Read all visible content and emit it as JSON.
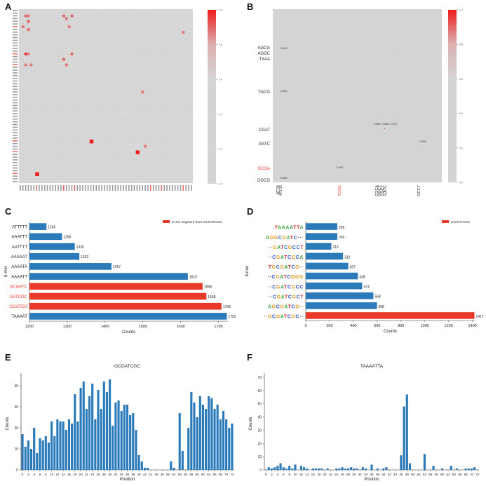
{
  "panels": {
    "A": "A",
    "B": "B",
    "C": "C",
    "D": "D",
    "E": "E",
    "F": "F"
  },
  "colors": {
    "blue": "#2b7bba",
    "red": "#e8392a",
    "heat_bg": "#d4d4d4",
    "heat_hot": "#ee1c1c"
  },
  "chart_data": [
    {
      "panel": "A",
      "type": "heatmap",
      "title": "",
      "colorbar_ticks": [
        "1.0",
        "0.8",
        "0.6",
        "0.4",
        "0.2",
        "0.0"
      ],
      "colorbar_range": [
        0,
        1
      ],
      "grid_size": 64,
      "hot_cells": [
        {
          "row": 2,
          "col": 2,
          "value": 0.6
        },
        {
          "row": 2,
          "col": 3,
          "value": 0.5
        },
        {
          "row": 4,
          "col": 3,
          "value": 0.7
        },
        {
          "row": 6,
          "col": 1,
          "value": 0.5
        },
        {
          "row": 7,
          "col": 3,
          "value": 0.6
        },
        {
          "row": 2,
          "col": 16,
          "value": 0.6
        },
        {
          "row": 3,
          "col": 17,
          "value": 0.5
        },
        {
          "row": 2,
          "col": 19,
          "value": 0.6
        },
        {
          "row": 6,
          "col": 18,
          "value": 0.5
        },
        {
          "row": 16,
          "col": 2,
          "value": 0.9
        },
        {
          "row": 16,
          "col": 3,
          "value": 0.5
        },
        {
          "row": 18,
          "col": 16,
          "value": 0.6
        },
        {
          "row": 16,
          "col": 19,
          "value": 0.6
        },
        {
          "row": 20,
          "col": 2,
          "value": 0.5
        },
        {
          "row": 20,
          "col": 4,
          "value": 0.5
        },
        {
          "row": 20,
          "col": 17,
          "value": 0.5
        },
        {
          "row": 8,
          "col": 60,
          "value": 0.5
        },
        {
          "row": 30,
          "col": 45,
          "value": 0.5
        },
        {
          "row": 48,
          "col": 26,
          "value": 1.0
        },
        {
          "row": 50,
          "col": 46,
          "value": 0.5
        },
        {
          "row": 52,
          "col": 43,
          "value": 1.0
        },
        {
          "row": 60,
          "col": 6,
          "value": 1.0
        }
      ]
    },
    {
      "panel": "B",
      "type": "heatmap",
      "title": "",
      "colorbar_ticks": [
        "1.0",
        "0.8",
        "0.6",
        "0.4",
        "0.2",
        "0.0"
      ],
      "colorbar_range": [
        0,
        1
      ],
      "y_tick_labels": [
        "AGCG",
        "AGGC",
        "TAAA",
        "TGCG",
        "CGAT",
        "GATC",
        "GCGA",
        "GGCG"
      ],
      "y_tick_red": [
        "GCGA"
      ],
      "x_tick_labels": [
        "ATTA",
        "ATCG",
        "TCGC",
        "CGCA",
        "GGCT",
        "CGCT",
        "GATC",
        "GCCT"
      ],
      "x_tick_red": [
        "TCGC"
      ],
      "annotations": [
        "0.065",
        "0.062",
        "0.060, 0.066, 0.073",
        "0.059",
        "0.060",
        "0.066"
      ]
    },
    {
      "panel": "C",
      "type": "bar",
      "orientation": "horizontal",
      "ylabel": "6-mer",
      "xlabel": "Counts",
      "xlim": [
        1200,
        1725
      ],
      "x_ticks": [
        "1200",
        "1300",
        "1400",
        "1500",
        "1600",
        "1700"
      ],
      "legend": "6-mer segment from GCGATCGC",
      "categories": [
        "ATTTTT",
        "AAATTT",
        "AATTTT",
        "AAAAAT",
        "AAAATA",
        "AAAATT",
        "GCGATC",
        "GATCGC",
        "CGATCG",
        "TAAAAT"
      ],
      "values": [
        1245,
        1286,
        1320,
        1332,
        1417,
        1619,
        1658,
        1668,
        1708,
        1722
      ],
      "highlight": [
        false,
        false,
        false,
        false,
        false,
        false,
        true,
        true,
        true,
        false
      ]
    },
    {
      "panel": "D",
      "type": "bar",
      "orientation": "horizontal",
      "ylabel": "8-mer",
      "xlabel": "Counts",
      "xlim": [
        0,
        1420
      ],
      "x_ticks": [
        "0",
        "200",
        "400",
        "600",
        "800",
        "1000",
        "1200",
        "1400"
      ],
      "legend": "GCGATCGC",
      "categories": [
        "TAAAATTA",
        "AGGCGATC",
        "GATCGCCT",
        "CGATCGCA",
        "TGCGATCG",
        "CGATCGGG",
        "CGATCGCC",
        "CGATCGCT",
        "AGCGATCG",
        "GCGATCGC"
      ],
      "display_labels": [
        "TAAAATTA",
        "AGGCGATC···",
        "··GATCGCCT",
        "··CGATCGCA",
        "TGCGATCG··",
        "··CGATCGGG",
        "··CGATCGCC",
        "··CGATCGCT",
        "AGCGATCG··",
        "··GCGATCGC··"
      ],
      "value_labels": [
        "265",
        "265",
        "215",
        "313",
        "357",
        "438",
        "474",
        "568",
        "598",
        "1417"
      ],
      "values": [
        265,
        265,
        215,
        313,
        357,
        438,
        474,
        568,
        598,
        1417
      ],
      "highlight": [
        false,
        false,
        false,
        false,
        false,
        false,
        false,
        false,
        false,
        true
      ]
    },
    {
      "panel": "E",
      "type": "bar",
      "title": "GCGATCGC",
      "xlabel": "Position",
      "ylabel": "Counts",
      "ylim": [
        0,
        44
      ],
      "y_ticks": [
        "0",
        "10",
        "20",
        "30",
        "40"
      ],
      "x_ticks": [
        "0",
        "2",
        "4",
        "6",
        "8",
        "10",
        "12",
        "14",
        "16",
        "18",
        "20",
        "22",
        "24",
        "26",
        "28",
        "30",
        "32",
        "34",
        "36",
        "38",
        "40",
        "42",
        "44",
        "46",
        "48",
        "50",
        "52",
        "54",
        "56",
        "58",
        "60",
        "62",
        "64",
        "66",
        "68",
        "70",
        "72"
      ],
      "x": [
        0,
        1,
        2,
        3,
        4,
        5,
        6,
        7,
        8,
        9,
        10,
        11,
        12,
        13,
        14,
        15,
        16,
        17,
        18,
        19,
        20,
        21,
        22,
        23,
        24,
        25,
        26,
        27,
        28,
        29,
        30,
        31,
        32,
        33,
        34,
        35,
        36,
        37,
        38,
        39,
        40,
        41,
        42,
        43,
        44,
        45,
        46,
        47,
        48,
        49,
        50,
        51,
        52,
        53,
        54,
        55,
        56,
        57,
        58,
        59,
        60,
        61,
        62,
        63,
        64,
        65,
        66,
        67,
        68,
        69,
        70,
        71,
        72
      ],
      "values": [
        17,
        11,
        14,
        10,
        20,
        8,
        15,
        14,
        16,
        13,
        23,
        16,
        24,
        23,
        23,
        19,
        24,
        22,
        36,
        23,
        39,
        42,
        29,
        35,
        41,
        24,
        38,
        29,
        42,
        37,
        43,
        21,
        32,
        33,
        28,
        31,
        31,
        26,
        27,
        19,
        7,
        4,
        1,
        1,
        0,
        0,
        0,
        0,
        0,
        0,
        0,
        4,
        1,
        0,
        27,
        9,
        0,
        20,
        37,
        32,
        25,
        35,
        31,
        29,
        35,
        34,
        29,
        31,
        24,
        28,
        24,
        20,
        22
      ]
    },
    {
      "panel": "F",
      "type": "bar",
      "title": "TAAAATTA",
      "xlabel": "Position",
      "ylabel": "Counts",
      "ylim": [
        0,
        70
      ],
      "y_ticks": [
        "0",
        "10",
        "20",
        "30",
        "40",
        "50",
        "60",
        "70"
      ],
      "x_ticks": [
        "0",
        "2",
        "4",
        "6",
        "8",
        "10",
        "12",
        "14",
        "16",
        "18",
        "20",
        "22",
        "24",
        "26",
        "28",
        "30",
        "32",
        "34",
        "36",
        "38",
        "40",
        "42",
        "44",
        "46",
        "48",
        "50",
        "52",
        "54",
        "56",
        "58",
        "60",
        "62",
        "64",
        "66",
        "68",
        "70",
        "72"
      ],
      "x": [
        0,
        1,
        2,
        3,
        4,
        5,
        6,
        7,
        8,
        9,
        10,
        11,
        12,
        13,
        14,
        15,
        16,
        17,
        18,
        19,
        20,
        21,
        22,
        23,
        24,
        25,
        26,
        27,
        28,
        29,
        30,
        31,
        32,
        33,
        34,
        35,
        36,
        37,
        38,
        39,
        40,
        41,
        42,
        43,
        44,
        45,
        46,
        47,
        48,
        49,
        50,
        51,
        52,
        53,
        54,
        55,
        56,
        57,
        58,
        59,
        60,
        61,
        62,
        63,
        64,
        65,
        66,
        67,
        68,
        69,
        70,
        71,
        72
      ],
      "values": [
        0,
        2,
        1,
        2,
        3,
        5,
        2,
        1,
        3,
        1,
        4,
        0,
        3,
        2,
        1,
        0,
        1,
        1,
        1,
        1,
        0,
        1,
        0,
        0,
        1,
        1,
        2,
        1,
        1,
        2,
        1,
        1,
        0,
        2,
        1,
        0,
        4,
        0,
        1,
        0,
        1,
        2,
        0,
        0,
        0,
        0,
        11,
        48,
        57,
        5,
        0,
        0,
        0,
        0,
        12,
        0,
        0,
        3,
        0,
        0,
        1,
        0,
        0,
        3,
        0,
        1,
        0,
        0,
        1,
        1,
        1,
        2,
        0
      ]
    }
  ]
}
